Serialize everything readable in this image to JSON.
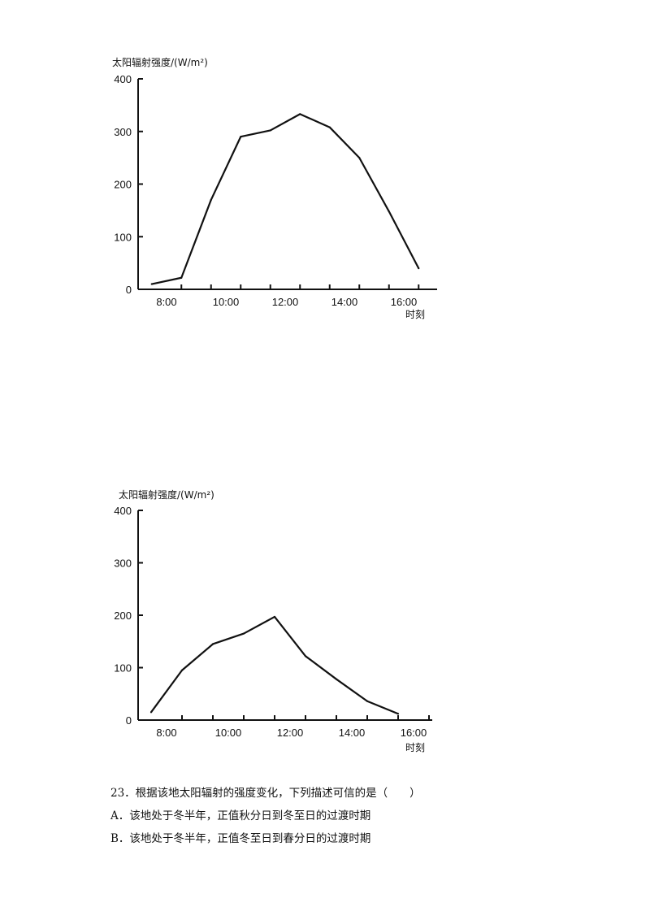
{
  "chart_data": [
    {
      "type": "line",
      "ylabel": "太阳辐射强度/(W/m²)",
      "xlabel": "时刻",
      "ylim": [
        0,
        400
      ],
      "yticks": [
        "0",
        "100",
        "200",
        "300",
        "400"
      ],
      "xticks": [
        "8:00",
        "10:00",
        "12:00",
        "14:00",
        "16:00"
      ],
      "x": [
        7.5,
        8.5,
        9.5,
        10.5,
        11.5,
        12.5,
        13.5,
        14.5,
        15.5,
        16.5
      ],
      "values": [
        10,
        22,
        170,
        290,
        302,
        333,
        308,
        250,
        148,
        40
      ]
    },
    {
      "type": "line",
      "ylabel": "太阳辐射强度/(W/m²)",
      "xlabel": "时刻",
      "ylim": [
        0,
        400
      ],
      "yticks": [
        "0",
        "100",
        "200",
        "300",
        "400"
      ],
      "xticks": [
        "8:00",
        "10:00",
        "12:00",
        "14:00",
        "16:00"
      ],
      "x": [
        7.5,
        8.5,
        9.5,
        10.5,
        11.5,
        12.5,
        13.5,
        14.5,
        15.5
      ],
      "values": [
        15,
        95,
        145,
        165,
        197,
        122,
        78,
        36,
        12
      ]
    }
  ],
  "question": {
    "stem": "23．根据该地太阳辐射的强度变化，下列描述可信的是（　　）",
    "option_a": "A．该地处于冬半年，正值秋分日到冬至日的过渡时期",
    "option_b": "B．该地处于冬半年，正值冬至日到春分日的过渡时期"
  }
}
